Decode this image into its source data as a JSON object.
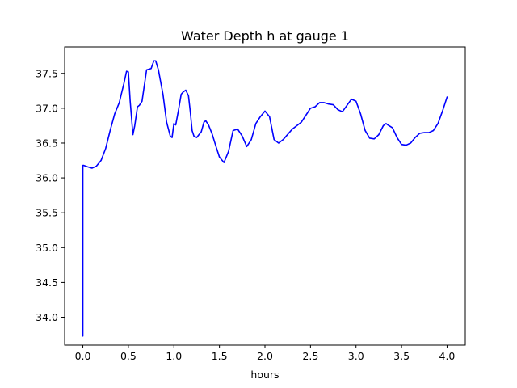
{
  "chart_data": {
    "type": "line",
    "title": "Water Depth h at gauge 1",
    "xlabel": "hours",
    "ylabel": "",
    "xlim": [
      -0.2,
      4.2
    ],
    "ylim": [
      33.6,
      37.88
    ],
    "xticks": [
      0.0,
      0.5,
      1.0,
      1.5,
      2.0,
      2.5,
      3.0,
      3.5,
      4.0
    ],
    "xtick_labels": [
      "0.0",
      "0.5",
      "1.0",
      "1.5",
      "2.0",
      "2.5",
      "3.0",
      "3.5",
      "4.0"
    ],
    "yticks": [
      34.0,
      34.5,
      35.0,
      35.5,
      36.0,
      36.5,
      37.0,
      37.5
    ],
    "ytick_labels": [
      "34.0",
      "34.5",
      "35.0",
      "35.5",
      "36.0",
      "36.5",
      "37.0",
      "37.5"
    ],
    "grid": false,
    "line_color": "#0000ff",
    "series": [
      {
        "x": [
          0.0,
          0.0,
          0.01,
          0.05,
          0.1,
          0.15,
          0.2,
          0.25,
          0.3,
          0.35,
          0.4,
          0.45,
          0.48,
          0.5,
          0.52,
          0.55,
          0.57,
          0.6,
          0.62,
          0.65,
          0.7,
          0.75,
          0.78,
          0.8,
          0.83,
          0.88,
          0.92,
          0.96,
          0.98,
          1.0,
          1.02,
          1.05,
          1.08,
          1.1,
          1.13,
          1.16,
          1.18,
          1.2,
          1.22,
          1.25,
          1.3,
          1.33,
          1.35,
          1.38,
          1.42,
          1.46,
          1.5,
          1.55,
          1.6,
          1.65,
          1.7,
          1.75,
          1.8,
          1.85,
          1.9,
          1.95,
          2.0,
          2.05,
          2.1,
          2.15,
          2.2,
          2.3,
          2.4,
          2.5,
          2.55,
          2.6,
          2.65,
          2.7,
          2.75,
          2.8,
          2.85,
          2.9,
          2.95,
          3.0,
          3.05,
          3.1,
          3.15,
          3.2,
          3.25,
          3.3,
          3.33,
          3.35,
          3.4,
          3.45,
          3.5,
          3.55,
          3.6,
          3.65,
          3.7,
          3.75,
          3.8,
          3.85,
          3.9,
          3.95,
          4.0
        ],
        "y": [
          33.73,
          36.18,
          36.18,
          36.16,
          36.14,
          36.17,
          36.25,
          36.42,
          36.68,
          36.92,
          37.08,
          37.35,
          37.53,
          37.52,
          37.1,
          36.62,
          36.75,
          37.02,
          37.04,
          37.1,
          37.55,
          37.57,
          37.68,
          37.68,
          37.55,
          37.2,
          36.8,
          36.6,
          36.58,
          36.78,
          36.76,
          36.97,
          37.2,
          37.23,
          37.26,
          37.18,
          36.95,
          36.68,
          36.6,
          36.58,
          36.66,
          36.8,
          36.82,
          36.76,
          36.63,
          36.46,
          36.3,
          36.22,
          36.38,
          36.68,
          36.7,
          36.6,
          36.45,
          36.55,
          36.78,
          36.88,
          36.96,
          36.88,
          36.55,
          36.5,
          36.55,
          36.7,
          36.8,
          37.0,
          37.02,
          37.08,
          37.08,
          37.06,
          37.05,
          36.98,
          36.95,
          37.04,
          37.13,
          37.1,
          36.92,
          36.68,
          36.57,
          36.56,
          36.62,
          36.75,
          36.78,
          36.76,
          36.72,
          36.58,
          36.48,
          36.47,
          36.5,
          36.58,
          36.64,
          36.65,
          36.65,
          36.68,
          36.78,
          36.96,
          37.16
        ]
      }
    ]
  }
}
